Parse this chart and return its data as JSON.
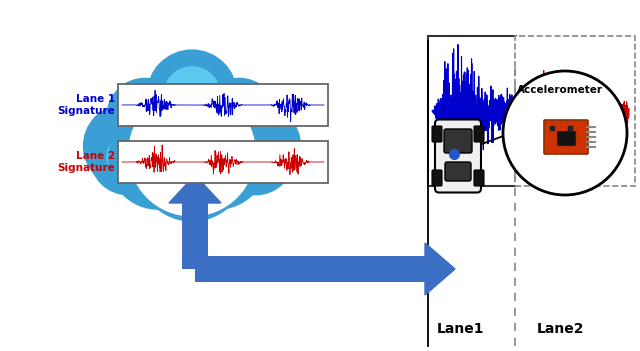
{
  "background_color": "#ffffff",
  "cloud_color": "#5bc8f0",
  "cloud_edge_color": "#3a9fd4",
  "arrow_color": "#3a6fc4",
  "lane1_color": "#0000cc",
  "lane2_color": "#cc0000",
  "lane1_label": "Lane 1\nSignature",
  "lane2_label": "Lane 2\nSignature",
  "lane1_text": "Lane1",
  "lane2_text": "Lane2",
  "accelerometer_text": "Accelerometer",
  "fig_width": 6.4,
  "fig_height": 3.51,
  "dpi": 100
}
